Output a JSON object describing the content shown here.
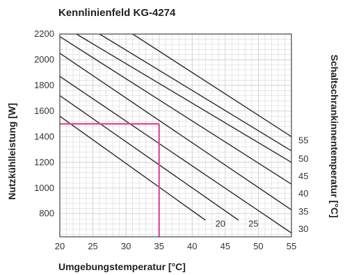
{
  "chart_data": {
    "type": "line",
    "title": "Kennlinienfeld KG-4274",
    "xlabel": "Umgebungstemperatur [°C]",
    "ylabel": "Nutzkühlleistung [W]",
    "y2label": "Schaltschrankinnentemperatur [°C]",
    "xlim": [
      20,
      55
    ],
    "ylim": [
      620,
      2200
    ],
    "x_ticks": [
      20,
      25,
      30,
      35,
      40,
      45,
      50,
      55
    ],
    "y_ticks": [
      800,
      1000,
      1200,
      1400,
      1600,
      1800,
      2000,
      2200
    ],
    "grid": true,
    "series": [
      {
        "name": "20",
        "points": [
          [
            20,
            1560
          ],
          [
            42,
            750
          ]
        ]
      },
      {
        "name": "25",
        "points": [
          [
            20,
            1720
          ],
          [
            47,
            750
          ]
        ]
      },
      {
        "name": "30",
        "points": [
          [
            20,
            1870
          ],
          [
            55,
            650
          ]
        ]
      },
      {
        "name": "35",
        "points": [
          [
            20,
            2050
          ],
          [
            55,
            830
          ]
        ]
      },
      {
        "name": "40",
        "points": [
          [
            20,
            2180
          ],
          [
            55,
            1030
          ]
        ]
      },
      {
        "name": "45",
        "points": [
          [
            22.5,
            2200
          ],
          [
            55,
            1200
          ]
        ]
      },
      {
        "name": "50",
        "points": [
          [
            26,
            2200
          ],
          [
            55,
            1290
          ]
        ]
      },
      {
        "name": "55",
        "points": [
          [
            31,
            2200
          ],
          [
            55,
            1400
          ]
        ]
      }
    ],
    "curve_labels_bottom": [
      {
        "text": "20",
        "x": 43.5,
        "y": 720
      },
      {
        "text": "25",
        "x": 48.5,
        "y": 720
      }
    ],
    "curve_labels_right": [
      {
        "text": "55",
        "y": 1370
      },
      {
        "text": "50",
        "y": 1225
      },
      {
        "text": "45",
        "y": 1090
      },
      {
        "text": "40",
        "y": 955
      },
      {
        "text": "35",
        "y": 815
      },
      {
        "text": "30",
        "y": 680
      }
    ],
    "reading_marker": {
      "x": 35,
      "y": 1500
    },
    "colors": {
      "curve": "#2a2a2a",
      "marker": "#e0468f",
      "grid": "#d0d0d0"
    }
  }
}
